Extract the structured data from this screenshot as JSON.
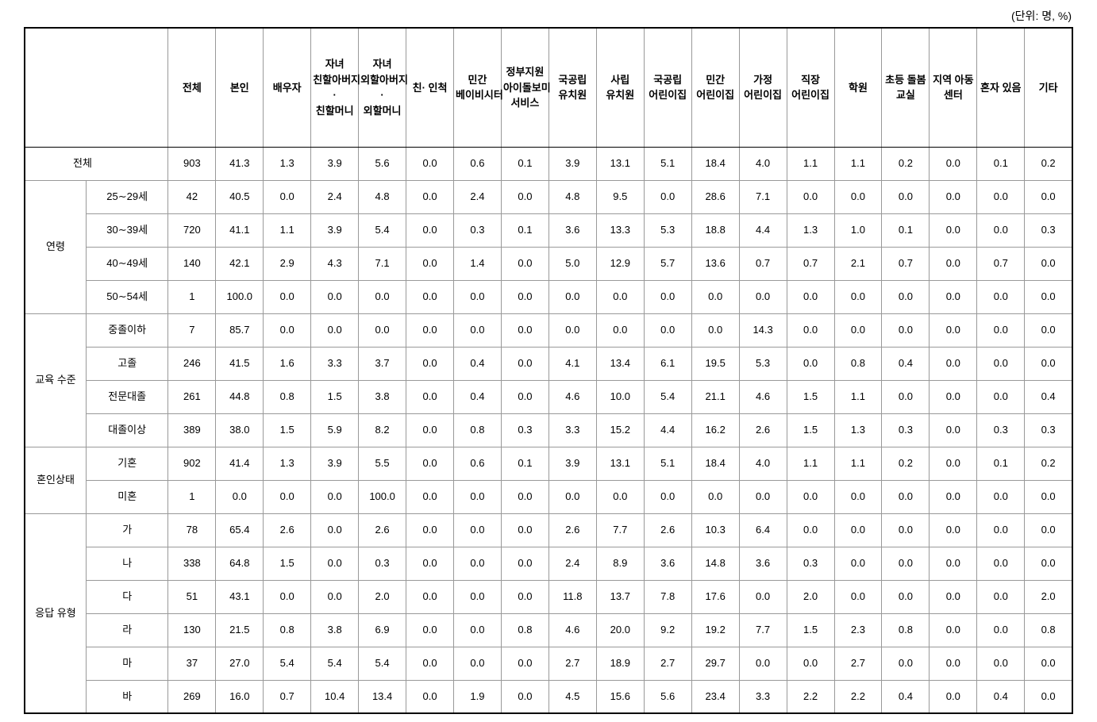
{
  "unit_label": "(단위: 명, %)",
  "columns": [
    "전체",
    "본인",
    "배우자",
    "자녀 친할아버지· 친할머니",
    "자녀 외할아버지· 외할머니",
    "친· 인척",
    "민간 베이비시터",
    "정부지원 아이돌보미 서비스",
    "국공립 유치원",
    "사립 유치원",
    "국공립 어린이집",
    "민간 어린이집",
    "가정 어린이집",
    "직장 어린이집",
    "학원",
    "초등 돌봄 교실",
    "지역 아동 센터",
    "혼자 있음",
    "기타"
  ],
  "groups": [
    {
      "group_label": "전체",
      "span_both": true,
      "rows": [
        {
          "sub": null,
          "cells": [
            "903",
            "41.3",
            "1.3",
            "3.9",
            "5.6",
            "0.0",
            "0.6",
            "0.1",
            "3.9",
            "13.1",
            "5.1",
            "18.4",
            "4.0",
            "1.1",
            "1.1",
            "0.2",
            "0.0",
            "0.1",
            "0.2"
          ]
        }
      ]
    },
    {
      "group_label": "연령",
      "rows": [
        {
          "sub": "25∼29세",
          "cells": [
            "42",
            "40.5",
            "0.0",
            "2.4",
            "4.8",
            "0.0",
            "2.4",
            "0.0",
            "4.8",
            "9.5",
            "0.0",
            "28.6",
            "7.1",
            "0.0",
            "0.0",
            "0.0",
            "0.0",
            "0.0",
            "0.0"
          ]
        },
        {
          "sub": "30∼39세",
          "cells": [
            "720",
            "41.1",
            "1.1",
            "3.9",
            "5.4",
            "0.0",
            "0.3",
            "0.1",
            "3.6",
            "13.3",
            "5.3",
            "18.8",
            "4.4",
            "1.3",
            "1.0",
            "0.1",
            "0.0",
            "0.0",
            "0.3"
          ]
        },
        {
          "sub": "40∼49세",
          "cells": [
            "140",
            "42.1",
            "2.9",
            "4.3",
            "7.1",
            "0.0",
            "1.4",
            "0.0",
            "5.0",
            "12.9",
            "5.7",
            "13.6",
            "0.7",
            "0.7",
            "2.1",
            "0.7",
            "0.0",
            "0.7",
            "0.0"
          ]
        },
        {
          "sub": "50∼54세",
          "cells": [
            "1",
            "100.0",
            "0.0",
            "0.0",
            "0.0",
            "0.0",
            "0.0",
            "0.0",
            "0.0",
            "0.0",
            "0.0",
            "0.0",
            "0.0",
            "0.0",
            "0.0",
            "0.0",
            "0.0",
            "0.0",
            "0.0"
          ]
        }
      ]
    },
    {
      "group_label": "교육 수준",
      "rows": [
        {
          "sub": "중졸이하",
          "cells": [
            "7",
            "85.7",
            "0.0",
            "0.0",
            "0.0",
            "0.0",
            "0.0",
            "0.0",
            "0.0",
            "0.0",
            "0.0",
            "0.0",
            "14.3",
            "0.0",
            "0.0",
            "0.0",
            "0.0",
            "0.0",
            "0.0"
          ]
        },
        {
          "sub": "고졸",
          "cells": [
            "246",
            "41.5",
            "1.6",
            "3.3",
            "3.7",
            "0.0",
            "0.4",
            "0.0",
            "4.1",
            "13.4",
            "6.1",
            "19.5",
            "5.3",
            "0.0",
            "0.8",
            "0.4",
            "0.0",
            "0.0",
            "0.0"
          ]
        },
        {
          "sub": "전문대졸",
          "cells": [
            "261",
            "44.8",
            "0.8",
            "1.5",
            "3.8",
            "0.0",
            "0.4",
            "0.0",
            "4.6",
            "10.0",
            "5.4",
            "21.1",
            "4.6",
            "1.5",
            "1.1",
            "0.0",
            "0.0",
            "0.0",
            "0.4"
          ]
        },
        {
          "sub": "대졸이상",
          "cells": [
            "389",
            "38.0",
            "1.5",
            "5.9",
            "8.2",
            "0.0",
            "0.8",
            "0.3",
            "3.3",
            "15.2",
            "4.4",
            "16.2",
            "2.6",
            "1.5",
            "1.3",
            "0.3",
            "0.0",
            "0.3",
            "0.3"
          ]
        }
      ]
    },
    {
      "group_label": "혼인상태",
      "rows": [
        {
          "sub": "기혼",
          "cells": [
            "902",
            "41.4",
            "1.3",
            "3.9",
            "5.5",
            "0.0",
            "0.6",
            "0.1",
            "3.9",
            "13.1",
            "5.1",
            "18.4",
            "4.0",
            "1.1",
            "1.1",
            "0.2",
            "0.0",
            "0.1",
            "0.2"
          ]
        },
        {
          "sub": "미혼",
          "cells": [
            "1",
            "0.0",
            "0.0",
            "0.0",
            "100.0",
            "0.0",
            "0.0",
            "0.0",
            "0.0",
            "0.0",
            "0.0",
            "0.0",
            "0.0",
            "0.0",
            "0.0",
            "0.0",
            "0.0",
            "0.0",
            "0.0"
          ]
        }
      ]
    },
    {
      "group_label": "응답 유형",
      "rows": [
        {
          "sub": "가",
          "cells": [
            "78",
            "65.4",
            "2.6",
            "0.0",
            "2.6",
            "0.0",
            "0.0",
            "0.0",
            "2.6",
            "7.7",
            "2.6",
            "10.3",
            "6.4",
            "0.0",
            "0.0",
            "0.0",
            "0.0",
            "0.0",
            "0.0"
          ]
        },
        {
          "sub": "나",
          "cells": [
            "338",
            "64.8",
            "1.5",
            "0.0",
            "0.3",
            "0.0",
            "0.0",
            "0.0",
            "2.4",
            "8.9",
            "3.6",
            "14.8",
            "3.6",
            "0.3",
            "0.0",
            "0.0",
            "0.0",
            "0.0",
            "0.0"
          ]
        },
        {
          "sub": "다",
          "cells": [
            "51",
            "43.1",
            "0.0",
            "0.0",
            "2.0",
            "0.0",
            "0.0",
            "0.0",
            "11.8",
            "13.7",
            "7.8",
            "17.6",
            "0.0",
            "2.0",
            "0.0",
            "0.0",
            "0.0",
            "0.0",
            "2.0"
          ]
        },
        {
          "sub": "라",
          "cells": [
            "130",
            "21.5",
            "0.8",
            "3.8",
            "6.9",
            "0.0",
            "0.0",
            "0.8",
            "4.6",
            "20.0",
            "9.2",
            "19.2",
            "7.7",
            "1.5",
            "2.3",
            "0.8",
            "0.0",
            "0.0",
            "0.8"
          ]
        },
        {
          "sub": "마",
          "cells": [
            "37",
            "27.0",
            "5.4",
            "5.4",
            "5.4",
            "0.0",
            "0.0",
            "0.0",
            "2.7",
            "18.9",
            "2.7",
            "29.7",
            "0.0",
            "0.0",
            "2.7",
            "0.0",
            "0.0",
            "0.0",
            "0.0"
          ]
        },
        {
          "sub": "바",
          "cells": [
            "269",
            "16.0",
            "0.7",
            "10.4",
            "13.4",
            "0.0",
            "1.9",
            "0.0",
            "4.5",
            "15.6",
            "5.6",
            "23.4",
            "3.3",
            "2.2",
            "2.2",
            "0.4",
            "0.0",
            "0.4",
            "0.0"
          ]
        }
      ]
    }
  ]
}
